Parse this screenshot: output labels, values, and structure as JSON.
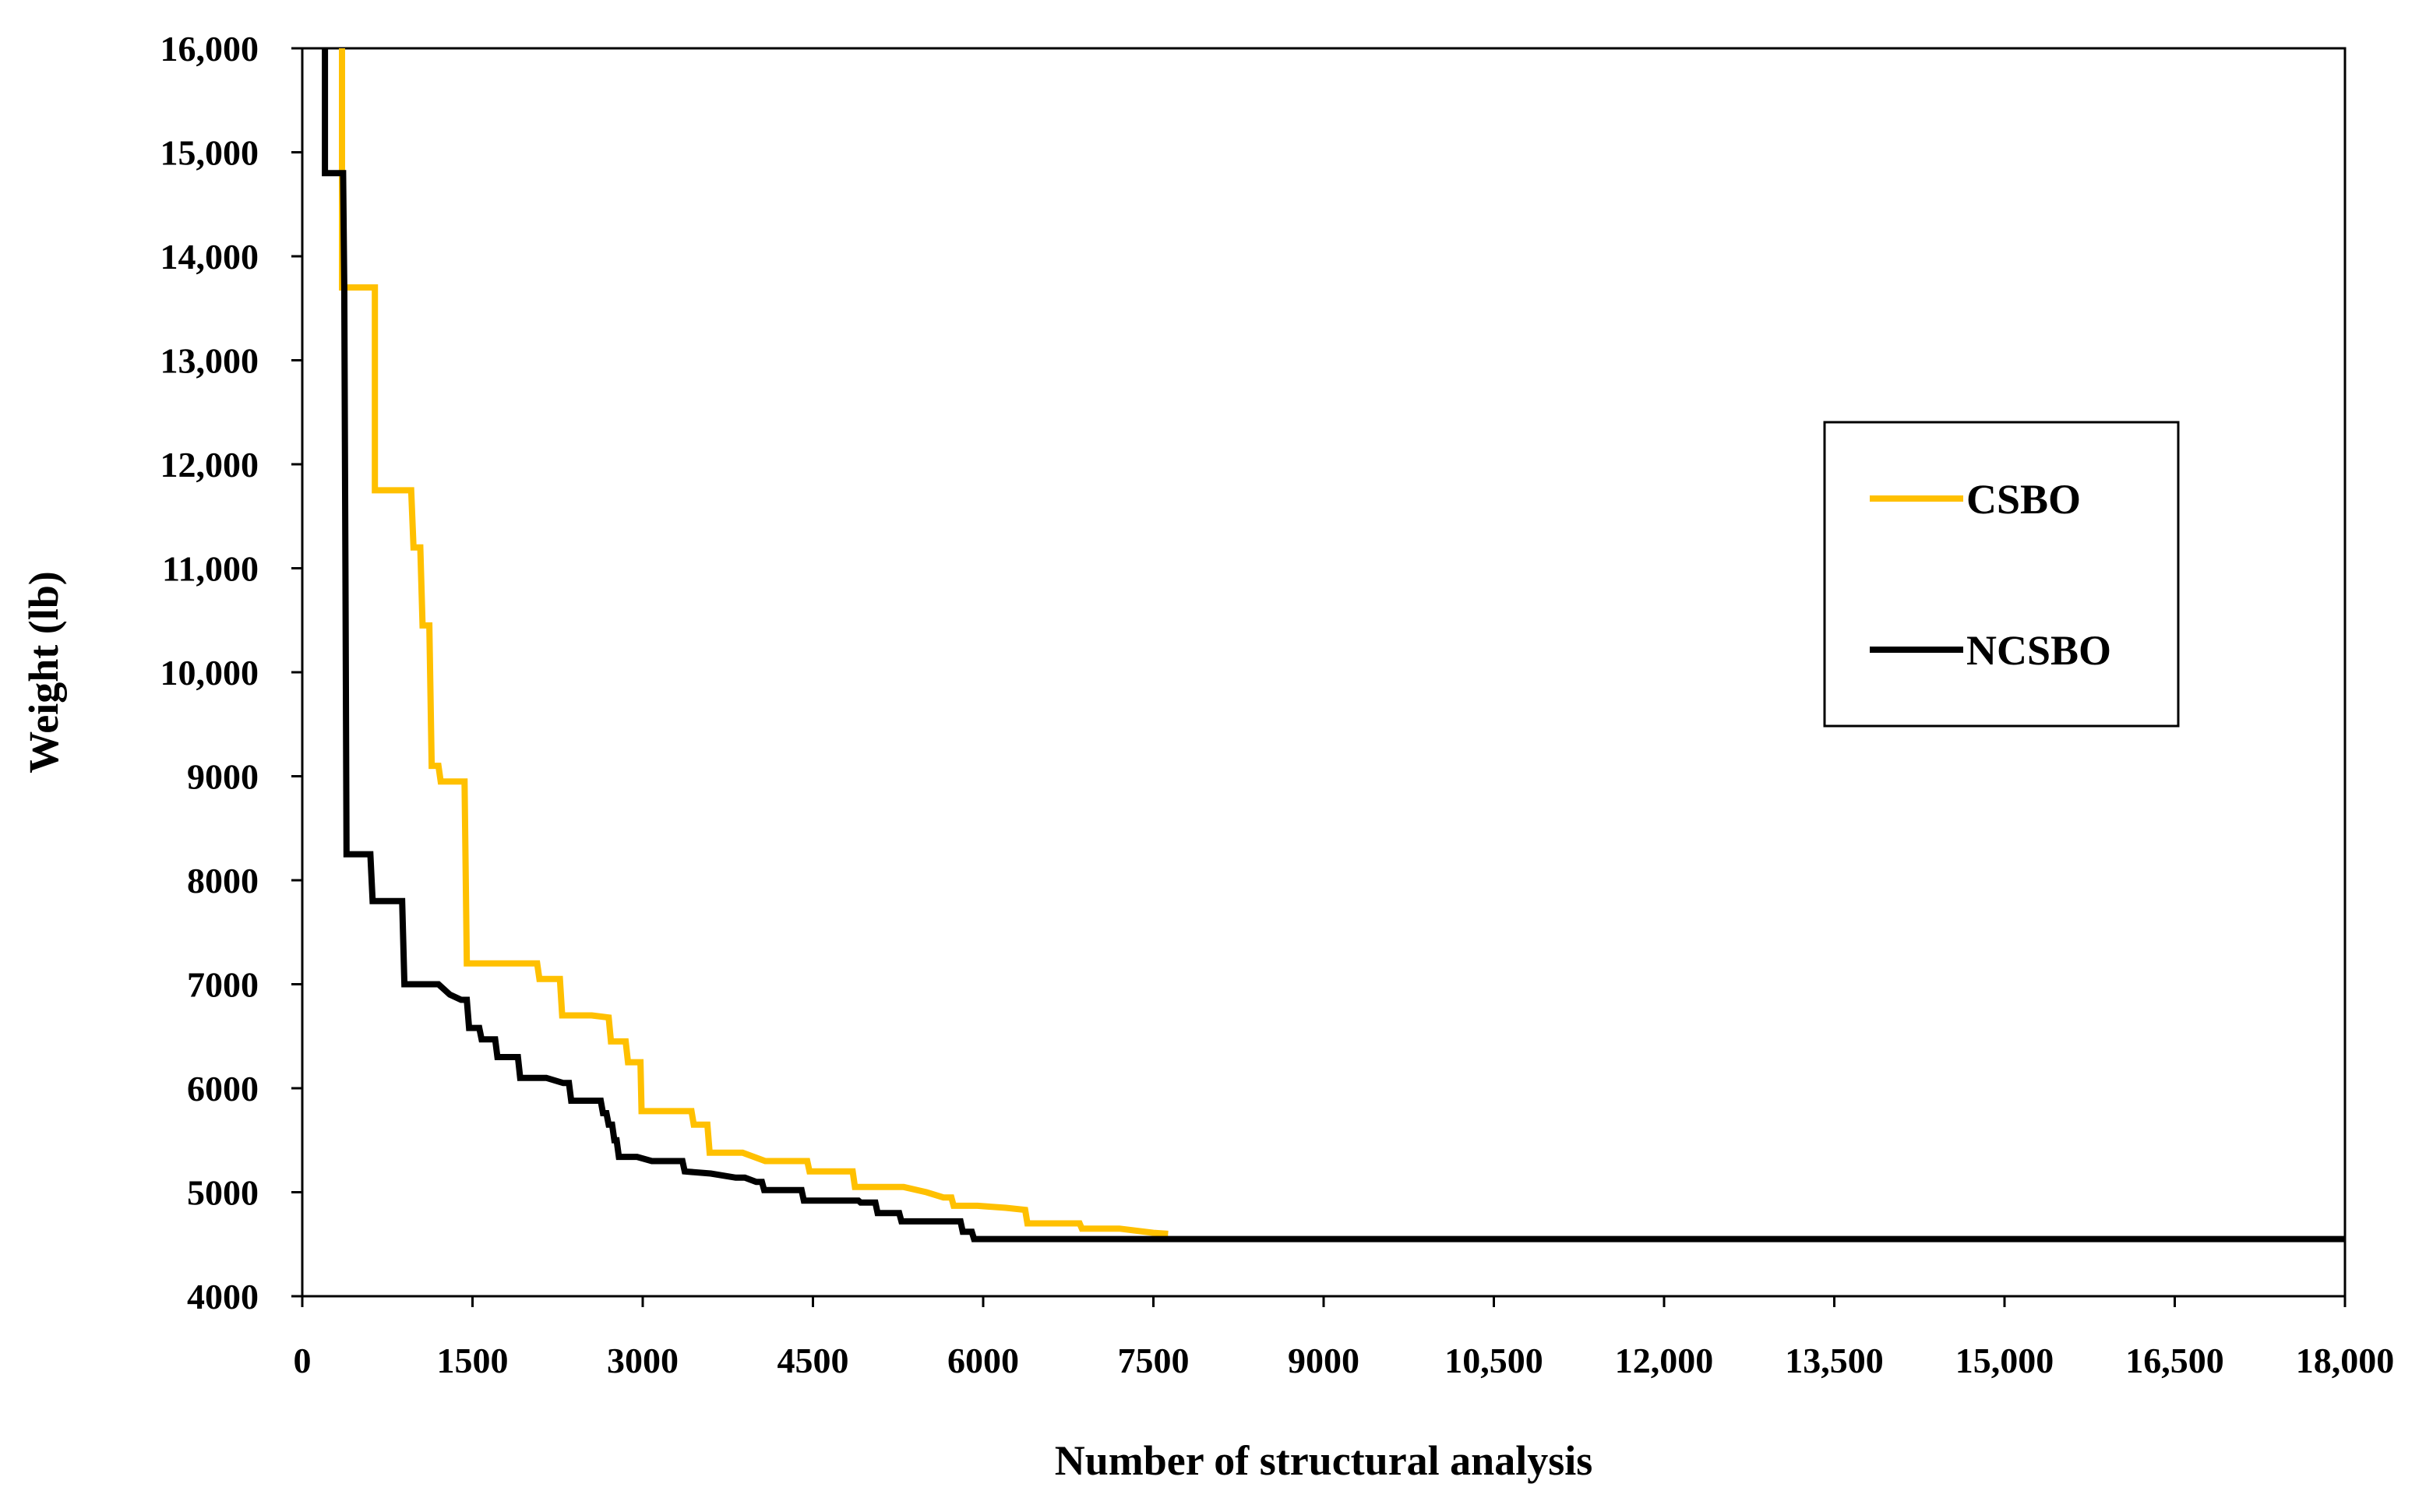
{
  "chart_data": {
    "type": "line",
    "title": "",
    "xlabel": "Number of structural analysis",
    "ylabel": "Weight  (lb)",
    "xlim": [
      0,
      18000
    ],
    "ylim": [
      4000,
      16000
    ],
    "x_ticks": [
      0,
      1500,
      3000,
      4500,
      6000,
      7500,
      9000,
      10500,
      12000,
      13500,
      15000,
      16500,
      18000
    ],
    "x_tick_labels": [
      "0",
      "1500",
      "3000",
      "4500",
      "6000",
      "7500",
      "9000",
      "10,500",
      "12,000",
      "13,500",
      "15,000",
      "16,500",
      "18,000"
    ],
    "y_ticks": [
      4000,
      5000,
      6000,
      7000,
      8000,
      9000,
      10000,
      11000,
      12000,
      13000,
      14000,
      15000,
      16000
    ],
    "y_tick_labels": [
      "4000",
      "5000",
      "6000",
      "7000",
      "8000",
      "9000",
      "10,000",
      "11,000",
      "12,000",
      "13,000",
      "14,000",
      "15,000",
      "16,000"
    ],
    "grid": false,
    "legend_position": "right",
    "series": [
      {
        "name": "CSBO",
        "color": "#FFC000",
        "points": [
          [
            350,
            16000
          ],
          [
            350,
            13700
          ],
          [
            640,
            13700
          ],
          [
            640,
            11750
          ],
          [
            960,
            11750
          ],
          [
            980,
            11200
          ],
          [
            1040,
            11200
          ],
          [
            1060,
            10450
          ],
          [
            1120,
            10450
          ],
          [
            1140,
            9100
          ],
          [
            1200,
            9100
          ],
          [
            1220,
            8950
          ],
          [
            1430,
            8950
          ],
          [
            1450,
            7200
          ],
          [
            2070,
            7200
          ],
          [
            2090,
            7050
          ],
          [
            2270,
            7050
          ],
          [
            2290,
            6700
          ],
          [
            2550,
            6700
          ],
          [
            2700,
            6680
          ],
          [
            2720,
            6450
          ],
          [
            2850,
            6450
          ],
          [
            2870,
            6250
          ],
          [
            2980,
            6250
          ],
          [
            2990,
            5780
          ],
          [
            3430,
            5780
          ],
          [
            3450,
            5650
          ],
          [
            3570,
            5650
          ],
          [
            3590,
            5380
          ],
          [
            3880,
            5380
          ],
          [
            4080,
            5300
          ],
          [
            4450,
            5300
          ],
          [
            4470,
            5200
          ],
          [
            4850,
            5200
          ],
          [
            4870,
            5050
          ],
          [
            5300,
            5050
          ],
          [
            5500,
            5000
          ],
          [
            5650,
            4950
          ],
          [
            5720,
            4950
          ],
          [
            5740,
            4870
          ],
          [
            5950,
            4870
          ],
          [
            6200,
            4850
          ],
          [
            6370,
            4830
          ],
          [
            6390,
            4700
          ],
          [
            6850,
            4700
          ],
          [
            6870,
            4650
          ],
          [
            7200,
            4650
          ],
          [
            7500,
            4610
          ],
          [
            7630,
            4600
          ]
        ]
      },
      {
        "name": "NCSBO",
        "color": "#000000",
        "points": [
          [
            200,
            16000
          ],
          [
            200,
            14800
          ],
          [
            360,
            14800
          ],
          [
            370,
            13700
          ],
          [
            380,
            11000
          ],
          [
            390,
            8250
          ],
          [
            600,
            8250
          ],
          [
            620,
            7800
          ],
          [
            880,
            7800
          ],
          [
            900,
            7000
          ],
          [
            1200,
            7000
          ],
          [
            1300,
            6900
          ],
          [
            1400,
            6850
          ],
          [
            1450,
            6850
          ],
          [
            1470,
            6580
          ],
          [
            1560,
            6580
          ],
          [
            1580,
            6470
          ],
          [
            1700,
            6470
          ],
          [
            1720,
            6300
          ],
          [
            1900,
            6300
          ],
          [
            1920,
            6100
          ],
          [
            2150,
            6100
          ],
          [
            2300,
            6050
          ],
          [
            2350,
            6050
          ],
          [
            2370,
            5880
          ],
          [
            2630,
            5880
          ],
          [
            2650,
            5760
          ],
          [
            2680,
            5760
          ],
          [
            2700,
            5650
          ],
          [
            2730,
            5650
          ],
          [
            2750,
            5500
          ],
          [
            2770,
            5500
          ],
          [
            2790,
            5340
          ],
          [
            2950,
            5340
          ],
          [
            3080,
            5300
          ],
          [
            3350,
            5300
          ],
          [
            3370,
            5200
          ],
          [
            3600,
            5180
          ],
          [
            3820,
            5140
          ],
          [
            3900,
            5140
          ],
          [
            4000,
            5100
          ],
          [
            4050,
            5100
          ],
          [
            4070,
            5020
          ],
          [
            4400,
            5020
          ],
          [
            4420,
            4920
          ],
          [
            4900,
            4920
          ],
          [
            4920,
            4900
          ],
          [
            5050,
            4900
          ],
          [
            5070,
            4800
          ],
          [
            5260,
            4800
          ],
          [
            5280,
            4720
          ],
          [
            5800,
            4720
          ],
          [
            5820,
            4620
          ],
          [
            5900,
            4620
          ],
          [
            5920,
            4550
          ],
          [
            18000,
            4550
          ]
        ]
      }
    ]
  }
}
